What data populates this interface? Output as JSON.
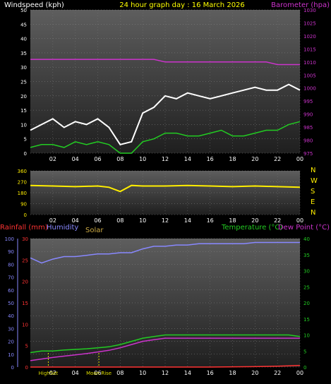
{
  "title": "24 hour graph day : 16 March 2026",
  "panels": {
    "wind": {
      "left_label": "Windspeed (kph)",
      "right_label": "Barometer (hpa)",
      "left_ticks": [
        "0",
        "5",
        "10",
        "15",
        "20",
        "25",
        "30",
        "35",
        "40",
        "45",
        "50"
      ],
      "right_ticks": [
        "975",
        "980",
        "985",
        "990",
        "995",
        "1000",
        "1005",
        "1010",
        "1015",
        "1020",
        "1025",
        "1030"
      ]
    },
    "direction": {
      "left_ticks": [
        "0",
        "90",
        "180",
        "270",
        "360"
      ],
      "right_labels": [
        "N",
        "W",
        "S",
        "E",
        "N"
      ]
    },
    "lower": {
      "rain_label": "Rainfall (mm)",
      "humidity_label": "Humidity",
      "solar_label": "Solar",
      "temp_label": "Temperature (°C)",
      "dew_label": "Dew Point (°C)",
      "humidity_ticks": [
        "0",
        "10",
        "20",
        "30",
        "40",
        "50",
        "60",
        "70",
        "80",
        "90",
        "100"
      ],
      "rain_ticks": [
        "0",
        "5",
        "10",
        "15",
        "20",
        "25",
        "30"
      ],
      "temp_ticks": [
        "0",
        "5",
        "10",
        "15",
        "20",
        "25",
        "30",
        "35",
        "40"
      ],
      "events": [
        {
          "label": "HighSet",
          "hour": 1.6
        },
        {
          "label": "Moon Rise",
          "hour": 6.1
        }
      ]
    }
  },
  "x_ticks": [
    "02",
    "04",
    "06",
    "08",
    "10",
    "12",
    "14",
    "16",
    "18",
    "20",
    "22",
    "00"
  ],
  "colors": {
    "windspeed": "#ffffff",
    "gust": "#ffffff",
    "avg_wind": "#22cc22",
    "barometer": "#cc33cc",
    "direction": "#ffee00",
    "humidity": "#8888ff",
    "temperature": "#22cc22",
    "dewpoint": "#cc33cc",
    "rainfall": "#ff3333",
    "solar": "#ccaa44",
    "title": "#ffff00"
  },
  "chart_data": [
    {
      "type": "line",
      "x_unit": "hours",
      "xlim": [
        0,
        24
      ],
      "series": [
        {
          "name": "Windspeed (kph)",
          "axis": "left",
          "ylim": [
            0,
            50
          ],
          "x": [
            0,
            1,
            2,
            3,
            4,
            5,
            6,
            7,
            8,
            9,
            10,
            11,
            12,
            13,
            14,
            15,
            16,
            17,
            18,
            19,
            20,
            21,
            22,
            23,
            24
          ],
          "values": [
            8,
            10,
            12,
            9,
            11,
            10,
            12,
            9,
            3,
            4,
            14,
            16,
            20,
            19,
            21,
            20,
            19,
            20,
            21,
            22,
            23,
            22,
            22,
            24,
            22
          ]
        },
        {
          "name": "Avg wind",
          "axis": "left",
          "ylim": [
            0,
            50
          ],
          "x": [
            0,
            1,
            2,
            3,
            4,
            5,
            6,
            7,
            8,
            9,
            10,
            11,
            12,
            13,
            14,
            15,
            16,
            17,
            18,
            19,
            20,
            21,
            22,
            23,
            24
          ],
          "values": [
            2,
            3,
            3,
            2,
            4,
            3,
            4,
            3,
            0,
            0,
            4,
            5,
            7,
            7,
            6,
            6,
            7,
            8,
            6,
            6,
            7,
            8,
            8,
            10,
            11
          ]
        },
        {
          "name": "Barometer (hpa)",
          "axis": "right",
          "ylim": [
            975,
            1030
          ],
          "x": [
            0,
            1,
            2,
            3,
            4,
            5,
            6,
            7,
            8,
            9,
            10,
            11,
            12,
            13,
            14,
            15,
            16,
            17,
            18,
            19,
            20,
            21,
            22,
            23,
            24
          ],
          "values": [
            1011,
            1011,
            1011,
            1011,
            1011,
            1011,
            1011,
            1011,
            1011,
            1011,
            1011,
            1011,
            1010,
            1010,
            1010,
            1010,
            1010,
            1010,
            1010,
            1010,
            1010,
            1010,
            1009,
            1009,
            1009
          ]
        }
      ]
    },
    {
      "type": "line",
      "x_unit": "hours",
      "xlim": [
        0,
        24
      ],
      "series": [
        {
          "name": "Wind direction",
          "axis": "left",
          "ylim": [
            0,
            360
          ],
          "x": [
            0,
            2,
            4,
            6,
            7,
            8,
            9,
            10,
            12,
            14,
            16,
            18,
            20,
            22,
            24
          ],
          "values": [
            240,
            235,
            230,
            235,
            225,
            190,
            240,
            235,
            235,
            240,
            235,
            230,
            235,
            230,
            225
          ]
        }
      ]
    },
    {
      "type": "line",
      "x_unit": "hours",
      "xlim": [
        0,
        24
      ],
      "series": [
        {
          "name": "Humidity",
          "axis": "humidity",
          "ylim": [
            0,
            100
          ],
          "x": [
            0,
            1,
            2,
            3,
            4,
            5,
            6,
            7,
            8,
            9,
            10,
            11,
            12,
            13,
            14,
            15,
            16,
            17,
            18,
            19,
            20,
            21,
            22,
            23,
            24
          ],
          "values": [
            85,
            81,
            84,
            86,
            86,
            87,
            88,
            88,
            89,
            89,
            92,
            94,
            94,
            95,
            95,
            96,
            96,
            96,
            96,
            96,
            97,
            97,
            97,
            97,
            97
          ]
        },
        {
          "name": "Temperature (°C)",
          "axis": "temp",
          "ylim": [
            0,
            40
          ],
          "x": [
            0,
            1,
            2,
            3,
            4,
            5,
            6,
            7,
            8,
            9,
            10,
            11,
            12,
            13,
            14,
            15,
            16,
            17,
            18,
            19,
            20,
            21,
            22,
            23,
            24
          ],
          "values": [
            4.5,
            5,
            5,
            5.3,
            5.5,
            5.7,
            6,
            6.3,
            7,
            8,
            9,
            9.5,
            10,
            10,
            10,
            10,
            10,
            10,
            10,
            10,
            10,
            10,
            10,
            10,
            9.5
          ]
        },
        {
          "name": "Dew Point (°C)",
          "axis": "temp",
          "ylim": [
            0,
            40
          ],
          "x": [
            0,
            1,
            2,
            3,
            4,
            5,
            6,
            7,
            8,
            9,
            10,
            11,
            12,
            13,
            14,
            15,
            16,
            17,
            18,
            19,
            20,
            21,
            22,
            23,
            24
          ],
          "values": [
            2,
            2.5,
            3,
            3.4,
            3.8,
            4.2,
            4.7,
            5.2,
            6,
            7,
            8,
            8.5,
            9,
            9,
            9,
            9,
            9,
            9,
            9,
            9,
            9,
            9,
            9,
            9,
            9
          ]
        },
        {
          "name": "Rainfall (mm)",
          "axis": "rain",
          "ylim": [
            0,
            30
          ],
          "x": [
            0,
            12,
            16,
            20,
            22,
            23,
            24
          ],
          "values": [
            0,
            0,
            0,
            0.1,
            0.2,
            0.3,
            0.4
          ]
        }
      ]
    }
  ]
}
